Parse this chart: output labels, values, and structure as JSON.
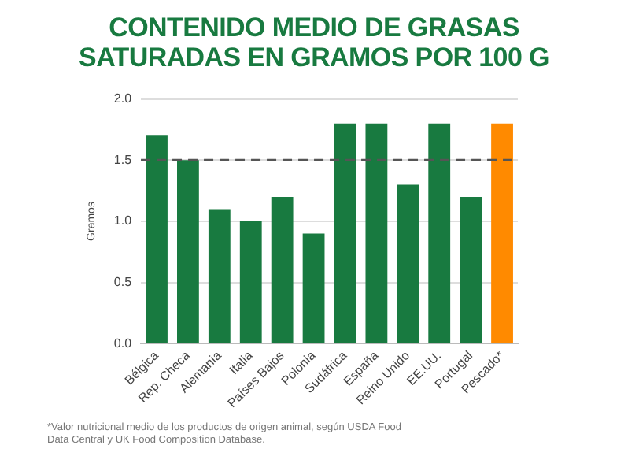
{
  "chart_data": {
    "type": "bar",
    "title": "CONTENIDO MEDIO DE GRASAS SATURADAS EN GRAMOS POR 100 G",
    "ylabel": "Gramos",
    "categories": [
      "Bélgica",
      "Rep. Checa",
      "Alemania",
      "Italia",
      "Países Bajos",
      "Polonia",
      "Sudáfrica",
      "España",
      "Reino Unido",
      "EE.UU.",
      "Portugal",
      "Pescado*"
    ],
    "values": [
      1.7,
      1.5,
      1.1,
      1.0,
      1.2,
      0.9,
      1.8,
      1.8,
      1.3,
      1.8,
      1.2,
      1.8
    ],
    "colors": [
      "#187a40",
      "#187a40",
      "#187a40",
      "#187a40",
      "#187a40",
      "#187a40",
      "#187a40",
      "#187a40",
      "#187a40",
      "#187a40",
      "#187a40",
      "#ff8a00"
    ],
    "ylim": [
      0,
      2
    ],
    "yticks": [
      {
        "value": 0,
        "label": "0.0"
      },
      {
        "value": 0.5,
        "label": "0.5"
      },
      {
        "value": 1,
        "label": "1.0"
      },
      {
        "value": 1.5,
        "label": "1.5"
      },
      {
        "value": 2,
        "label": "2.0"
      }
    ],
    "grid": "y",
    "legend": false,
    "ref_lines": [
      {
        "axis": "y",
        "value": 1.5,
        "color": "#555555",
        "line_style": "dashed"
      }
    ],
    "annotations": [
      "*Valor nutricional medio de los productos de origen animal, según USDA Food Data Central y UK Food Composition Database."
    ]
  }
}
